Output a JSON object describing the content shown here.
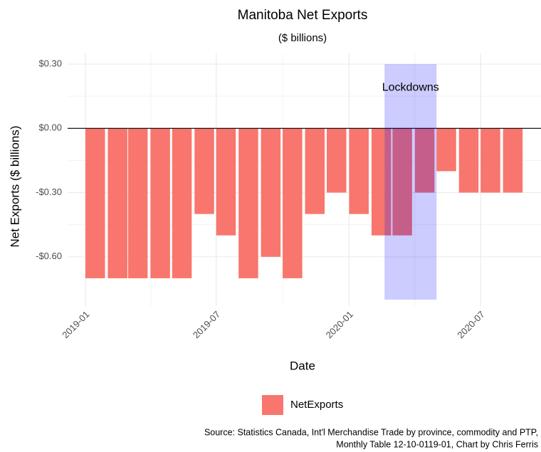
{
  "chart_data": {
    "type": "bar",
    "title": "Manitoba Net Exports",
    "subtitle": "($ billions)",
    "x_label": "Date",
    "y_label": "Net Exports ($ billions)",
    "categories": [
      "2019-01",
      "2019-02",
      "2019-03",
      "2019-04",
      "2019-05",
      "2019-06",
      "2019-07",
      "2019-08",
      "2019-09",
      "2019-10",
      "2019-11",
      "2019-12",
      "2020-01",
      "2020-02",
      "2020-03",
      "2020-04",
      "2020-05",
      "2020-06",
      "2020-07",
      "2020-08"
    ],
    "series": [
      {
        "name": "NetExports",
        "color": "#f8766d",
        "values": [
          -0.7,
          -0.7,
          -0.7,
          -0.7,
          -0.7,
          -0.4,
          -0.5,
          -0.7,
          -0.6,
          -0.7,
          -0.4,
          -0.3,
          -0.4,
          -0.5,
          -0.5,
          -0.3,
          -0.2,
          -0.3,
          -0.3,
          -0.3
        ]
      }
    ],
    "ylim": [
      -0.83,
      0.35
    ],
    "yticks": [
      {
        "value": 0.3,
        "label": "$0.30"
      },
      {
        "value": 0,
        "label": "$0.00"
      },
      {
        "value": -0.3,
        "label": "-$0.30"
      },
      {
        "value": -0.6,
        "label": "-$0.60"
      }
    ],
    "xticks": [
      "2019-01",
      "2019-07",
      "2020-01",
      "2020-07"
    ],
    "grid": true,
    "annotation": {
      "label": "Lockdowns",
      "x": [
        "2020-02-19",
        "2020-05-01"
      ],
      "y": [
        0.3,
        -0.8
      ],
      "label_y": 0.19,
      "color": "#0000ff"
    },
    "caption": [
      "Source: Statistics Canada, Int'l Merchandise Trade by province, commodity and PTP,",
      "Monthly Table 12-10-0119-01, Chart by Chris Ferris"
    ]
  }
}
